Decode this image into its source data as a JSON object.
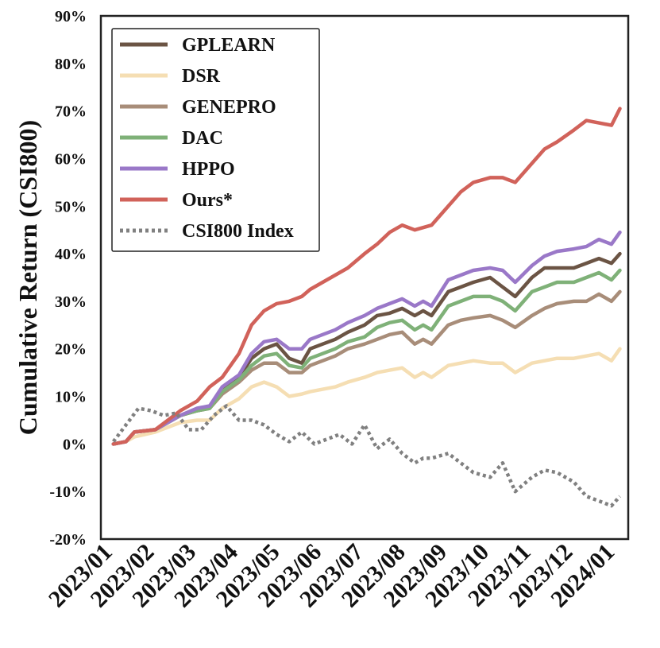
{
  "chart_data": {
    "type": "line",
    "title": "",
    "xlabel": "",
    "ylabel": "Cumulative Return (CSI800)",
    "xlim": [
      -0.3,
      12.3
    ],
    "ylim": [
      -20,
      90
    ],
    "x_ticks": [
      "2023/01",
      "2023/02",
      "2023/03",
      "2023/04",
      "2023/05",
      "2023/06",
      "2023/07",
      "2023/08",
      "2023/09",
      "2023/10",
      "2023/11",
      "2023/12",
      "2024/01"
    ],
    "y_ticks": [
      "-20%",
      "-10%",
      "0%",
      "10%",
      "20%",
      "30%",
      "40%",
      "50%",
      "60%",
      "70%",
      "80%",
      "90%"
    ],
    "grid": false,
    "legend_position": "top-left",
    "series": [
      {
        "name": "GPLEARN",
        "color": "#6b5444",
        "dash": "solid",
        "x": [
          0,
          0.3,
          0.5,
          1,
          1.3,
          1.6,
          2,
          2.3,
          2.6,
          3,
          3.3,
          3.6,
          3.9,
          4.2,
          4.5,
          4.7,
          5,
          5.3,
          5.6,
          6,
          6.3,
          6.6,
          6.9,
          7.2,
          7.4,
          7.6,
          8,
          8.3,
          8.6,
          9,
          9.3,
          9.6,
          10,
          10.3,
          10.6,
          11,
          11.3,
          11.6,
          11.9,
          12.1
        ],
        "y": [
          0,
          0.5,
          2.5,
          3,
          4.5,
          6,
          7,
          7.5,
          11.5,
          14,
          18,
          20,
          21,
          18,
          17,
          20,
          21,
          22,
          23.5,
          25,
          27,
          27.5,
          28.5,
          27,
          28,
          27,
          32,
          33,
          34,
          35,
          33,
          31,
          35,
          37,
          37,
          37,
          38,
          39,
          38,
          40
        ]
      },
      {
        "name": "DSR",
        "color": "#f5deb3",
        "dash": "solid",
        "x": [
          0,
          0.3,
          0.5,
          1,
          1.3,
          1.6,
          2,
          2.3,
          2.6,
          3,
          3.3,
          3.6,
          3.9,
          4.2,
          4.5,
          4.7,
          5,
          5.3,
          5.6,
          6,
          6.3,
          6.6,
          6.9,
          7.2,
          7.4,
          7.6,
          8,
          8.3,
          8.6,
          9,
          9.3,
          9.6,
          10,
          10.3,
          10.6,
          11,
          11.3,
          11.6,
          11.9,
          12.1
        ],
        "y": [
          0,
          0.5,
          1.5,
          2.5,
          3.5,
          4.5,
          5,
          5,
          7.5,
          9.5,
          12,
          13,
          12,
          10,
          10.5,
          11,
          11.5,
          12,
          13,
          14,
          15,
          15.5,
          16,
          14,
          15,
          14,
          16.5,
          17,
          17.5,
          17,
          17,
          15,
          17,
          17.5,
          18,
          18,
          18.5,
          19,
          17.5,
          20
        ]
      },
      {
        "name": "GENEPRO",
        "color": "#a88d79",
        "dash": "solid",
        "x": [
          0,
          0.3,
          0.5,
          1,
          1.3,
          1.6,
          2,
          2.3,
          2.6,
          3,
          3.3,
          3.6,
          3.9,
          4.2,
          4.5,
          4.7,
          5,
          5.3,
          5.6,
          6,
          6.3,
          6.6,
          6.9,
          7.2,
          7.4,
          7.6,
          8,
          8.3,
          8.6,
          9,
          9.3,
          9.6,
          10,
          10.3,
          10.6,
          11,
          11.3,
          11.6,
          11.9,
          12.1
        ],
        "y": [
          0,
          0.5,
          2.5,
          3,
          4.5,
          6,
          7,
          7.5,
          10.5,
          13,
          15.5,
          17,
          17,
          15,
          15,
          16.5,
          17.5,
          18.5,
          20,
          21,
          22,
          23,
          23.5,
          21,
          22,
          21,
          25,
          26,
          26.5,
          27,
          26,
          24.5,
          27,
          28.5,
          29.5,
          30,
          30,
          31.5,
          30,
          32
        ]
      },
      {
        "name": "DAC",
        "color": "#7fb178",
        "dash": "solid",
        "x": [
          0,
          0.3,
          0.5,
          1,
          1.3,
          1.6,
          2,
          2.3,
          2.6,
          3,
          3.3,
          3.6,
          3.9,
          4.2,
          4.5,
          4.7,
          5,
          5.3,
          5.6,
          6,
          6.3,
          6.6,
          6.9,
          7.2,
          7.4,
          7.6,
          8,
          8.3,
          8.6,
          9,
          9.3,
          9.6,
          10,
          10.3,
          10.6,
          11,
          11.3,
          11.6,
          11.9,
          12.1
        ],
        "y": [
          0,
          0.5,
          2.5,
          3,
          4.5,
          6,
          7,
          7.5,
          11,
          13.5,
          16.5,
          18.5,
          19,
          16.5,
          16,
          18,
          19,
          20,
          21.5,
          22.5,
          24.5,
          25.5,
          26,
          24,
          25,
          24,
          29,
          30,
          31,
          31,
          30,
          28,
          32,
          33,
          34,
          34,
          35,
          36,
          34.5,
          36.5
        ]
      },
      {
        "name": "HPPO",
        "color": "#9a78c8",
        "dash": "solid",
        "x": [
          0,
          0.3,
          0.5,
          1,
          1.3,
          1.6,
          2,
          2.3,
          2.6,
          3,
          3.3,
          3.6,
          3.9,
          4.2,
          4.5,
          4.7,
          5,
          5.3,
          5.6,
          6,
          6.3,
          6.6,
          6.9,
          7.2,
          7.4,
          7.6,
          8,
          8.3,
          8.6,
          9,
          9.3,
          9.6,
          10,
          10.3,
          10.6,
          11,
          11.3,
          11.6,
          11.9,
          12.1
        ],
        "y": [
          0,
          0.5,
          2.5,
          3,
          4.5,
          6,
          7.5,
          8,
          12,
          14.5,
          19,
          21.5,
          22,
          20,
          20,
          22,
          23,
          24,
          25.5,
          27,
          28.5,
          29.5,
          30.5,
          29,
          30,
          29,
          34.5,
          35.5,
          36.5,
          37,
          36.5,
          34,
          37.5,
          39.5,
          40.5,
          41,
          41.5,
          43,
          42,
          44.5
        ]
      },
      {
        "name": "Ours*",
        "color": "#d1625a",
        "dash": "solid",
        "x": [
          0,
          0.3,
          0.5,
          1,
          1.3,
          1.6,
          2,
          2.3,
          2.6,
          3,
          3.3,
          3.6,
          3.9,
          4.2,
          4.5,
          4.7,
          5,
          5.3,
          5.6,
          6,
          6.3,
          6.6,
          6.9,
          7.2,
          7.4,
          7.6,
          8,
          8.3,
          8.6,
          9,
          9.3,
          9.6,
          10,
          10.3,
          10.6,
          11,
          11.3,
          11.6,
          11.9,
          12.1
        ],
        "y": [
          0,
          0.5,
          2.5,
          3,
          5,
          7,
          9,
          12,
          14,
          19,
          25,
          28,
          29.5,
          30,
          31,
          32.5,
          34,
          35.5,
          37,
          40,
          42,
          44.5,
          46,
          45,
          45.5,
          46,
          50,
          53,
          55,
          56,
          56,
          55,
          59,
          62,
          63.5,
          66,
          68,
          67.5,
          67,
          70.5
        ]
      },
      {
        "name": "CSI800 Index",
        "color": "#808080",
        "dash": "dotted",
        "x": [
          0,
          0.3,
          0.6,
          0.9,
          1.2,
          1.5,
          1.8,
          2.1,
          2.4,
          2.7,
          3,
          3.3,
          3.6,
          3.9,
          4.2,
          4.5,
          4.8,
          5.1,
          5.4,
          5.7,
          6,
          6.3,
          6.6,
          6.9,
          7.2,
          7.4,
          7.6,
          8,
          8.3,
          8.6,
          9,
          9.3,
          9.6,
          10,
          10.3,
          10.6,
          11,
          11.3,
          11.6,
          11.9,
          12.1
        ],
        "y": [
          0.5,
          4,
          7.5,
          7,
          6,
          6.5,
          3,
          3,
          6,
          8,
          5,
          5,
          4,
          2,
          0.5,
          2.5,
          0,
          1,
          2,
          0,
          4,
          -1,
          1,
          -2,
          -4,
          -3,
          -3,
          -2,
          -4,
          -6,
          -7,
          -4,
          -10,
          -7,
          -5.5,
          -6,
          -8,
          -11,
          -12,
          -13,
          -11
        ]
      }
    ]
  }
}
